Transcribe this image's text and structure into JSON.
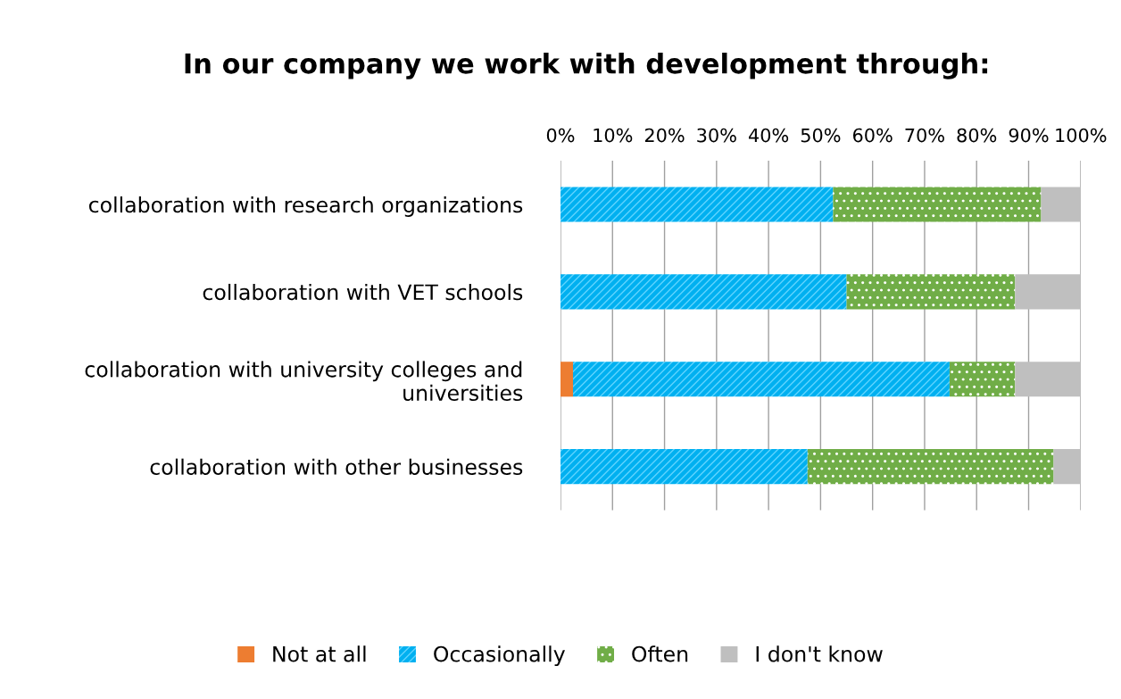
{
  "chart_data": {
    "type": "bar",
    "orientation": "horizontal",
    "stacked": true,
    "title": "In our company we work with development through:",
    "categories": [
      "collaboration with research organizations",
      "collaboration with VET schools",
      "collaboration with university colleges and universities",
      "collaboration with other businesses"
    ],
    "series": [
      {
        "name": "Not at all",
        "color": "#ed7d31",
        "values": [
          0,
          0,
          2.4,
          0
        ]
      },
      {
        "name": "Occasionally",
        "color": "#00b0f0",
        "values": [
          52.4,
          55.0,
          72.4,
          47.5
        ]
      },
      {
        "name": "Often",
        "color": "#70ad47",
        "values": [
          40.0,
          32.4,
          12.6,
          47.3
        ]
      },
      {
        "name": "I don't know",
        "color": "#bfbfbf",
        "values": [
          7.6,
          12.6,
          12.6,
          5.2
        ]
      }
    ],
    "xlim": [
      0,
      100
    ],
    "xticks": [
      {
        "value": 0,
        "label": "0%"
      },
      {
        "value": 10,
        "label": "10%"
      },
      {
        "value": 20,
        "label": "20%"
      },
      {
        "value": 30,
        "label": "30%"
      },
      {
        "value": 40,
        "label": "40%"
      },
      {
        "value": 50,
        "label": "50%"
      },
      {
        "value": 60,
        "label": "60%"
      },
      {
        "value": 70,
        "label": "70%"
      },
      {
        "value": 80,
        "label": "80%"
      },
      {
        "value": 90,
        "label": "90%"
      },
      {
        "value": 100,
        "label": "100%"
      }
    ],
    "grid": "x",
    "legend": "bottom"
  }
}
